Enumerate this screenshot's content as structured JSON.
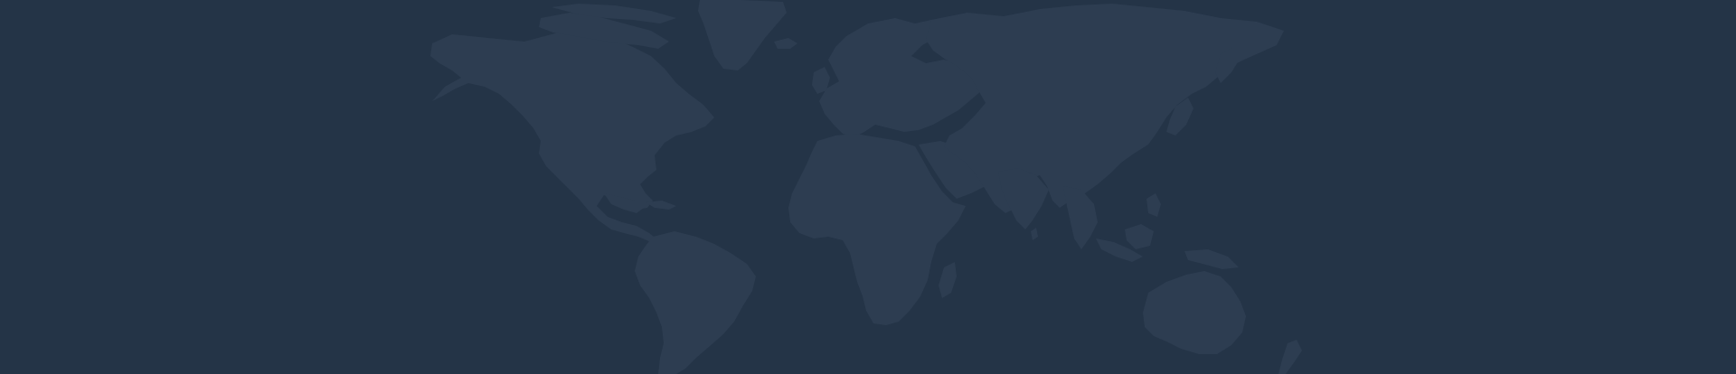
{
  "colors": {
    "background": "#243447",
    "land": "#2d3d51"
  },
  "map": {
    "projection": "world-map-silhouette",
    "continents": [
      "north-america",
      "greenland",
      "south-america",
      "europe",
      "africa",
      "asia",
      "australia"
    ]
  }
}
